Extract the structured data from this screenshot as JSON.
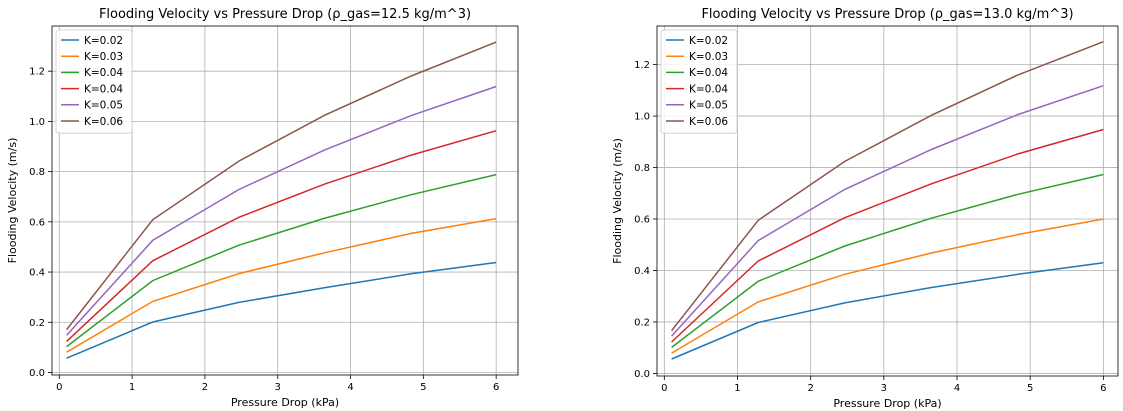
{
  "chart_data": [
    {
      "type": "line",
      "title": "Flooding Velocity vs Pressure Drop (ρ_gas=12.5 kg/m^3)",
      "xlabel": "Pressure Drop (kPa)",
      "ylabel": "Flooding Velocity (m/s)",
      "xlim": [
        -0.1,
        6.3
      ],
      "ylim": [
        -0.01,
        1.38
      ],
      "xticks": [
        0,
        1,
        2,
        3,
        4,
        5,
        6
      ],
      "yticks": [
        0.0,
        0.2,
        0.4,
        0.6,
        0.8,
        1.0,
        1.2
      ],
      "grid": true,
      "legend_position": "top-left",
      "x": [
        0.1,
        1.283,
        2.467,
        3.65,
        4.833,
        6.0
      ],
      "series": [
        {
          "name": "K=0.02",
          "color": "#1f77b4",
          "values": [
            0.057,
            0.201,
            0.279,
            0.338,
            0.393,
            0.438
          ]
        },
        {
          "name": "K=0.03",
          "color": "#ff7f0e",
          "values": [
            0.081,
            0.283,
            0.394,
            0.477,
            0.554,
            0.613
          ]
        },
        {
          "name": "K=0.04",
          "color": "#2ca02c",
          "values": [
            0.103,
            0.366,
            0.507,
            0.615,
            0.708,
            0.788
          ]
        },
        {
          "name": "K=0.04",
          "color": "#d62728",
          "values": [
            0.124,
            0.445,
            0.618,
            0.751,
            0.866,
            0.963
          ]
        },
        {
          "name": "K=0.05",
          "color": "#9467bd",
          "values": [
            0.148,
            0.526,
            0.729,
            0.887,
            1.023,
            1.139
          ]
        },
        {
          "name": "K=0.06",
          "color": "#8c564b",
          "values": [
            0.171,
            0.608,
            0.842,
            1.025,
            1.181,
            1.316
          ]
        }
      ]
    },
    {
      "type": "line",
      "title": "Flooding Velocity vs Pressure Drop (ρ_gas=13.0 kg/m^3)",
      "xlabel": "Pressure Drop (kPa)",
      "ylabel": "Flooding Velocity (m/s)",
      "xlim": [
        -0.1,
        6.2
      ],
      "ylim": [
        -0.01,
        1.35
      ],
      "xticks": [
        0,
        1,
        2,
        3,
        4,
        5,
        6
      ],
      "yticks": [
        0.0,
        0.2,
        0.4,
        0.6,
        0.8,
        1.0,
        1.2
      ],
      "grid": true,
      "legend_position": "top-left",
      "x": [
        0.1,
        1.283,
        2.467,
        3.65,
        4.833,
        6.0
      ],
      "series": [
        {
          "name": "K=0.02",
          "color": "#1f77b4",
          "values": [
            0.056,
            0.198,
            0.274,
            0.334,
            0.385,
            0.43
          ]
        },
        {
          "name": "K=0.03",
          "color": "#ff7f0e",
          "values": [
            0.079,
            0.278,
            0.385,
            0.468,
            0.54,
            0.6
          ]
        },
        {
          "name": "K=0.04",
          "color": "#2ca02c",
          "values": [
            0.101,
            0.358,
            0.495,
            0.603,
            0.696,
            0.773
          ]
        },
        {
          "name": "K=0.04",
          "color": "#d62728",
          "values": [
            0.122,
            0.437,
            0.605,
            0.737,
            0.853,
            0.948
          ]
        },
        {
          "name": "K=0.05",
          "color": "#9467bd",
          "values": [
            0.145,
            0.516,
            0.715,
            0.87,
            1.006,
            1.118
          ]
        },
        {
          "name": "K=0.06",
          "color": "#8c564b",
          "values": [
            0.166,
            0.595,
            0.824,
            1.003,
            1.16,
            1.289
          ]
        }
      ]
    }
  ]
}
